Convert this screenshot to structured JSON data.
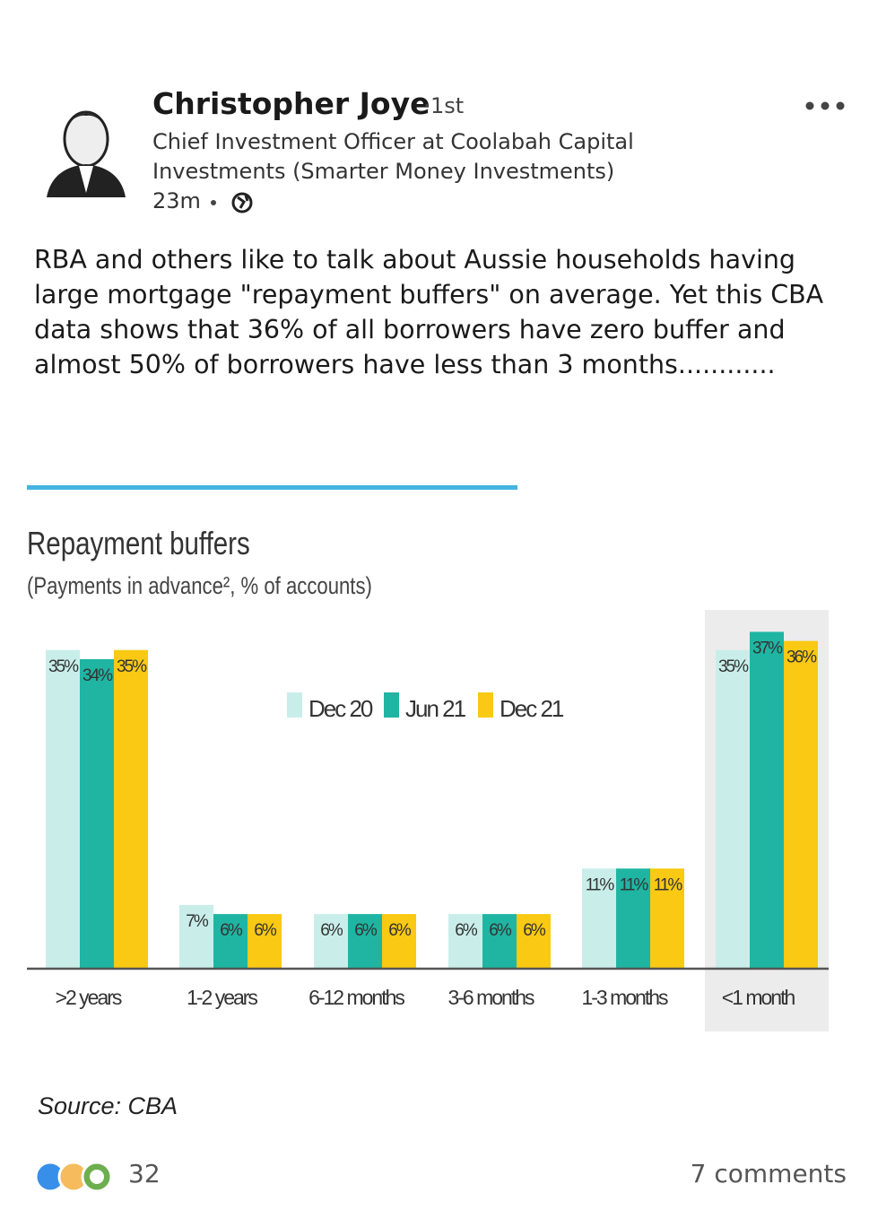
{
  "post": {
    "author": "Christopher Joye",
    "degree": "1st",
    "headline": "Chief Investment Officer at Coolabah Capital Investments (Smarter Money Investments)",
    "time": "23m",
    "text": "RBA and others like to talk about Aussie households having large mortgage \"repayment buffers\" on average. Yet this CBA data shows that 36% of all borrowers have zero buffer and almost 50% of borrowers have less than 3 months............",
    "reactions": 32,
    "comments": "7 comments"
  },
  "chart_data": {
    "type": "bar",
    "title": "Repayment buffers",
    "subtitle": "(Payments in advance², % of accounts)",
    "categories": [
      ">2 years",
      "1-2 years",
      "6-12 months",
      "3-6 months",
      "1-3 months",
      "<1 month"
    ],
    "series": [
      {
        "name": "Dec 20",
        "color": "#c9eeea",
        "values": [
          35,
          7,
          6,
          6,
          11,
          35
        ],
        "value_labels": [
          "35%",
          "7%",
          "6%",
          "6%",
          "11%",
          "35%"
        ]
      },
      {
        "name": "Jun 21",
        "color": "#1fb5a2",
        "values": [
          34,
          6,
          6,
          6,
          11,
          37
        ],
        "value_labels": [
          "34%",
          "6%",
          "6%",
          "6%",
          "11%",
          "37%"
        ]
      },
      {
        "name": "Dec 21",
        "color": "#f9c913",
        "values": [
          35,
          6,
          6,
          6,
          11,
          36
        ],
        "value_labels": [
          "35%",
          "6%",
          "6%",
          "6%",
          "11%",
          "36%"
        ]
      }
    ],
    "highlighted_category": 5,
    "legend": "top",
    "source": "Source: CBA"
  }
}
